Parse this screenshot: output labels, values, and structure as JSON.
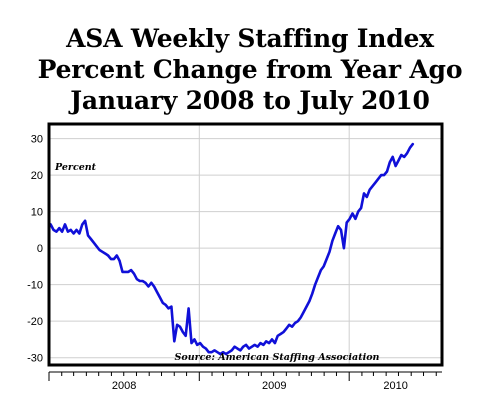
{
  "chart_data": {
    "type": "line",
    "title": [
      "ASA Weekly Staffing Index",
      "Percent Change from Year Ago",
      "January 2008 to July 2010"
    ],
    "ylabel": "Percent",
    "source": "Source: American Staffing Association",
    "ylim": [
      -32,
      34
    ],
    "xlim": [
      "2008-01-01",
      "2010-08-15"
    ],
    "yticks": [
      -30,
      -20,
      -10,
      0,
      10,
      20,
      30
    ],
    "xticks": [
      "2008",
      "2009",
      "2010"
    ],
    "grid": true,
    "series": [
      {
        "color": "#1010d8",
        "points": [
          [
            "2008-01-05",
            6.5
          ],
          [
            "2008-01-12",
            5.0
          ],
          [
            "2008-01-19",
            4.5
          ],
          [
            "2008-01-26",
            5.5
          ],
          [
            "2008-02-02",
            4.5
          ],
          [
            "2008-02-09",
            6.5
          ],
          [
            "2008-02-16",
            4.5
          ],
          [
            "2008-02-23",
            5.0
          ],
          [
            "2008-03-01",
            4.0
          ],
          [
            "2008-03-08",
            5.0
          ],
          [
            "2008-03-15",
            4.0
          ],
          [
            "2008-03-22",
            6.5
          ],
          [
            "2008-03-29",
            7.5
          ],
          [
            "2008-04-05",
            3.5
          ],
          [
            "2008-04-12",
            2.5
          ],
          [
            "2008-04-19",
            1.5
          ],
          [
            "2008-04-26",
            0.5
          ],
          [
            "2008-05-03",
            -0.5
          ],
          [
            "2008-05-10",
            -1.0
          ],
          [
            "2008-05-17",
            -1.5
          ],
          [
            "2008-05-24",
            -2.0
          ],
          [
            "2008-05-31",
            -3.0
          ],
          [
            "2008-06-07",
            -3.0
          ],
          [
            "2008-06-14",
            -2.0
          ],
          [
            "2008-06-21",
            -3.5
          ],
          [
            "2008-06-28",
            -6.5
          ],
          [
            "2008-07-05",
            -6.5
          ],
          [
            "2008-07-12",
            -6.5
          ],
          [
            "2008-07-19",
            -6.0
          ],
          [
            "2008-07-26",
            -7.0
          ],
          [
            "2008-08-02",
            -8.5
          ],
          [
            "2008-08-09",
            -9.0
          ],
          [
            "2008-08-16",
            -9.0
          ],
          [
            "2008-08-23",
            -9.5
          ],
          [
            "2008-08-30",
            -10.5
          ],
          [
            "2008-09-06",
            -9.5
          ],
          [
            "2008-09-13",
            -10.5
          ],
          [
            "2008-09-20",
            -12.0
          ],
          [
            "2008-09-27",
            -13.5
          ],
          [
            "2008-10-04",
            -15.0
          ],
          [
            "2008-10-11",
            -15.5
          ],
          [
            "2008-10-18",
            -16.5
          ],
          [
            "2008-10-25",
            -16.0
          ],
          [
            "2008-11-01",
            -25.5
          ],
          [
            "2008-11-08",
            -21.0
          ],
          [
            "2008-11-15",
            -21.5
          ],
          [
            "2008-11-22",
            -23.0
          ],
          [
            "2008-11-29",
            -24.0
          ],
          [
            "2008-12-06",
            -16.5
          ],
          [
            "2008-12-13",
            -26.0
          ],
          [
            "2008-12-20",
            -25.0
          ],
          [
            "2008-12-27",
            -26.5
          ],
          [
            "2009-01-03",
            -26.0
          ],
          [
            "2009-01-10",
            -27.0
          ],
          [
            "2009-01-17",
            -27.5
          ],
          [
            "2009-01-24",
            -28.5
          ],
          [
            "2009-01-31",
            -28.5
          ],
          [
            "2009-02-07",
            -28.0
          ],
          [
            "2009-02-14",
            -28.5
          ],
          [
            "2009-02-21",
            -29.0
          ],
          [
            "2009-02-28",
            -28.5
          ],
          [
            "2009-03-07",
            -29.0
          ],
          [
            "2009-03-14",
            -28.5
          ],
          [
            "2009-03-21",
            -28.0
          ],
          [
            "2009-03-28",
            -27.0
          ],
          [
            "2009-04-04",
            -27.5
          ],
          [
            "2009-04-11",
            -28.0
          ],
          [
            "2009-04-18",
            -27.0
          ],
          [
            "2009-04-25",
            -26.5
          ],
          [
            "2009-05-02",
            -27.5
          ],
          [
            "2009-05-09",
            -27.0
          ],
          [
            "2009-05-16",
            -26.5
          ],
          [
            "2009-05-23",
            -27.0
          ],
          [
            "2009-05-30",
            -26.0
          ],
          [
            "2009-06-06",
            -26.5
          ],
          [
            "2009-06-13",
            -25.5
          ],
          [
            "2009-06-20",
            -26.0
          ],
          [
            "2009-06-27",
            -25.0
          ],
          [
            "2009-07-04",
            -26.0
          ],
          [
            "2009-07-11",
            -24.0
          ],
          [
            "2009-07-18",
            -23.5
          ],
          [
            "2009-07-25",
            -23.0
          ],
          [
            "2009-08-01",
            -22.0
          ],
          [
            "2009-08-08",
            -21.0
          ],
          [
            "2009-08-15",
            -21.5
          ],
          [
            "2009-08-22",
            -20.5
          ],
          [
            "2009-08-29",
            -20.0
          ],
          [
            "2009-09-05",
            -19.0
          ],
          [
            "2009-09-12",
            -17.5
          ],
          [
            "2009-09-19",
            -16.0
          ],
          [
            "2009-09-26",
            -14.5
          ],
          [
            "2009-10-03",
            -12.5
          ],
          [
            "2009-10-10",
            -10.0
          ],
          [
            "2009-10-17",
            -8.0
          ],
          [
            "2009-10-24",
            -6.0
          ],
          [
            "2009-10-31",
            -5.0
          ],
          [
            "2009-11-07",
            -3.0
          ],
          [
            "2009-11-14",
            -1.0
          ],
          [
            "2009-11-21",
            2.0
          ],
          [
            "2009-11-28",
            4.0
          ],
          [
            "2009-12-05",
            6.0
          ],
          [
            "2009-12-12",
            5.0
          ],
          [
            "2009-12-19",
            0.0
          ],
          [
            "2009-12-26",
            7.0
          ],
          [
            "2010-01-02",
            8.0
          ],
          [
            "2010-01-09",
            9.5
          ],
          [
            "2010-01-16",
            8.0
          ],
          [
            "2010-01-23",
            10.0
          ],
          [
            "2010-01-30",
            11.0
          ],
          [
            "2010-02-06",
            15.0
          ],
          [
            "2010-02-13",
            14.0
          ],
          [
            "2010-02-20",
            16.0
          ],
          [
            "2010-02-27",
            17.0
          ],
          [
            "2010-03-06",
            18.0
          ],
          [
            "2010-03-13",
            19.0
          ],
          [
            "2010-03-20",
            20.0
          ],
          [
            "2010-03-27",
            20.0
          ],
          [
            "2010-04-03",
            21.0
          ],
          [
            "2010-04-10",
            23.5
          ],
          [
            "2010-04-17",
            25.0
          ],
          [
            "2010-04-24",
            22.5
          ],
          [
            "2010-05-01",
            24.0
          ],
          [
            "2010-05-08",
            25.5
          ],
          [
            "2010-05-15",
            25.0
          ],
          [
            "2010-05-22",
            26.0
          ],
          [
            "2010-05-29",
            27.5
          ],
          [
            "2010-06-05",
            28.5
          ]
        ]
      }
    ]
  }
}
